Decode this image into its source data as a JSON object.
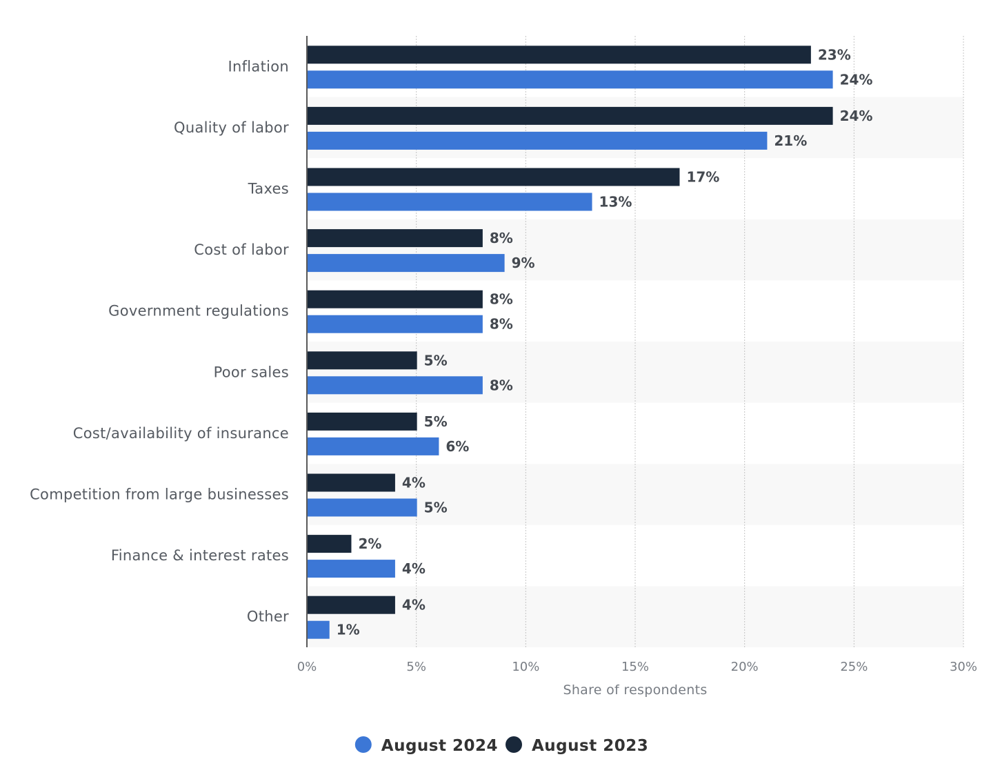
{
  "chart_data": {
    "type": "bar",
    "orientation": "horizontal",
    "title": "",
    "xlabel": "Share of respondents",
    "ylabel": "",
    "xlim": [
      0,
      30
    ],
    "grid": true,
    "legend_position": "bottom-center",
    "categories": [
      "Inflation",
      "Quality of labor",
      "Taxes",
      "Cost of labor",
      "Government regulations",
      "Poor sales",
      "Cost/availability of insurance",
      "Competition from large businesses",
      "Finance & interest rates",
      "Other"
    ],
    "series": [
      {
        "name": "August 2023",
        "color": "#19283a",
        "values": [
          23,
          24,
          17,
          8,
          8,
          5,
          5,
          4,
          2,
          4
        ],
        "labels": [
          "23%",
          "24%",
          "17%",
          "8%",
          "8%",
          "5%",
          "5%",
          "4%",
          "2%",
          "4%"
        ]
      },
      {
        "name": "August 2024",
        "color": "#3c77d6",
        "values": [
          24,
          21,
          13,
          9,
          8,
          8,
          6,
          5,
          4,
          1
        ],
        "labels": [
          "24%",
          "21%",
          "13%",
          "9%",
          "8%",
          "8%",
          "6%",
          "5%",
          "4%",
          "1%"
        ]
      }
    ],
    "x_ticks": [
      "0%",
      "5%",
      "10%",
      "15%",
      "20%",
      "25%",
      "30%"
    ],
    "legend": [
      {
        "name": "August 2024",
        "color": "#3c77d6"
      },
      {
        "name": "August 2023",
        "color": "#19283a"
      }
    ]
  }
}
